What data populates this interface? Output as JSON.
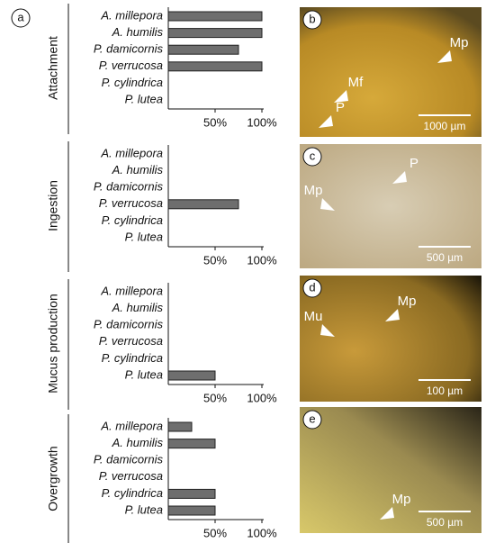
{
  "panel_label": "a",
  "chart_data": [
    {
      "type": "barh",
      "title": "Attachment",
      "categories": [
        "A. millepora",
        "A. humilis",
        "P. damicornis",
        "P. verrucosa",
        "P. cylindrica",
        "P. lutea"
      ],
      "values": [
        100,
        100,
        75,
        100,
        0,
        0
      ],
      "xlim": [
        0,
        100
      ],
      "xticks": [
        {
          "value": 50,
          "label": "50%"
        },
        {
          "value": 100,
          "label": "100%"
        }
      ],
      "color": "#6e6e6e"
    },
    {
      "type": "barh",
      "title": "Ingestion",
      "categories": [
        "A. millepora",
        "A. humilis",
        "P. damicornis",
        "P. verrucosa",
        "P. cylindrica",
        "P. lutea"
      ],
      "values": [
        0,
        0,
        0,
        75,
        0,
        0
      ],
      "xlim": [
        0,
        100
      ],
      "xticks": [
        {
          "value": 50,
          "label": "50%"
        },
        {
          "value": 100,
          "label": "100%"
        }
      ],
      "color": "#6e6e6e"
    },
    {
      "type": "barh",
      "title": "Mucus production",
      "categories": [
        "A. millepora",
        "A. humilis",
        "P. damicornis",
        "P. verrucosa",
        "P. cylindrica",
        "P. lutea"
      ],
      "values": [
        0,
        0,
        0,
        0,
        0,
        50
      ],
      "xlim": [
        0,
        100
      ],
      "xticks": [
        {
          "value": 50,
          "label": "50%"
        },
        {
          "value": 100,
          "label": "100%"
        }
      ],
      "color": "#6e6e6e"
    },
    {
      "type": "barh",
      "title": "Overgrowth",
      "categories": [
        "A. millepora",
        "A. humilis",
        "P. damicornis",
        "P. verrucosa",
        "P. cylindrica",
        "P. lutea"
      ],
      "values": [
        25,
        50,
        0,
        0,
        50,
        50
      ],
      "xlim": [
        0,
        100
      ],
      "xticks": [
        {
          "value": 50,
          "label": "50%"
        },
        {
          "value": 100,
          "label": "100%"
        }
      ],
      "color": "#6e6e6e"
    }
  ],
  "photos": [
    {
      "label": "b",
      "annotations": [
        "Mp",
        "Mf",
        "P"
      ],
      "scale_bar": "1000 µm"
    },
    {
      "label": "c",
      "annotations": [
        "P",
        "Mp"
      ],
      "scale_bar": "500 µm"
    },
    {
      "label": "d",
      "annotations": [
        "Mp",
        "Mu"
      ],
      "scale_bar": "100 µm"
    },
    {
      "label": "e",
      "annotations": [
        "Mp"
      ],
      "scale_bar": "500 µm"
    }
  ]
}
